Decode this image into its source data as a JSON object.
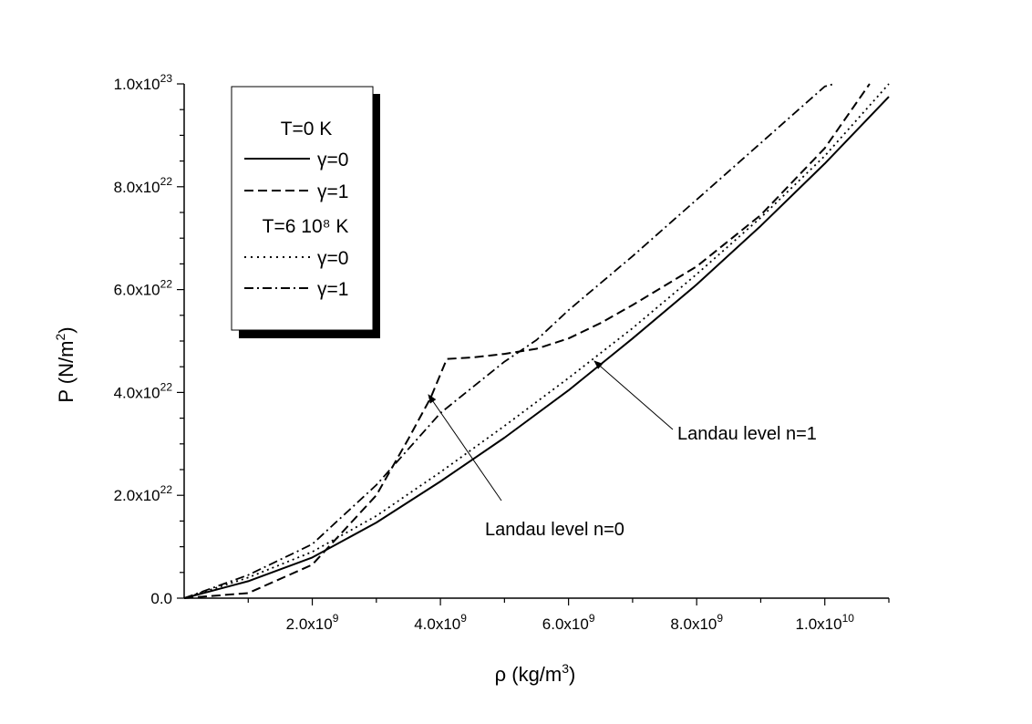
{
  "chart_data": {
    "type": "line",
    "xlabel": "ρ (kg/m³)",
    "ylabel": "P (N/m²)",
    "xlim": [
      0,
      11000000000
    ],
    "ylim": [
      0,
      1e+23
    ],
    "x_ticks": [
      {
        "value": 2000000000,
        "mant": "2.0x10",
        "exp": "9"
      },
      {
        "value": 4000000000,
        "mant": "4.0x10",
        "exp": "9"
      },
      {
        "value": 6000000000,
        "mant": "6.0x10",
        "exp": "9"
      },
      {
        "value": 8000000000,
        "mant": "8.0x10",
        "exp": "9"
      },
      {
        "value": 10000000000,
        "mant": "1.0x10",
        "exp": "10"
      }
    ],
    "y_ticks": [
      {
        "value": 0,
        "mant": "0.0",
        "exp": ""
      },
      {
        "value": 2e+22,
        "mant": "2.0x10",
        "exp": "22"
      },
      {
        "value": 4e+22,
        "mant": "4.0x10",
        "exp": "22"
      },
      {
        "value": 6e+22,
        "mant": "6.0x10",
        "exp": "22"
      },
      {
        "value": 8e+22,
        "mant": "8.0x10",
        "exp": "22"
      },
      {
        "value": 1e+23,
        "mant": "1.0x10",
        "exp": "23"
      }
    ],
    "legend": {
      "position": "top-left",
      "group_headers": [
        "T=0 K",
        "T=6 10⁸ K"
      ],
      "entries": [
        "γ=0",
        "γ=1",
        "γ=0",
        "γ=1"
      ]
    },
    "series": [
      {
        "group": "T=0 K",
        "gamma": "γ=0",
        "style": "solid",
        "x": [
          0,
          1000000000,
          2000000000,
          3000000000,
          4000000000,
          5000000000,
          6000000000,
          7000000000,
          8000000000,
          9000000000,
          10000000000,
          11000000000
        ],
        "y": [
          0,
          3.3e+21,
          7.9e+21,
          1.47e+22,
          2.27e+22,
          3.12e+22,
          4.04e+22,
          5.05e+22,
          6.1e+22,
          7.24e+22,
          8.45e+22,
          9.75e+22
        ]
      },
      {
        "group": "T=0 K",
        "gamma": "γ=1",
        "style": "dashed",
        "x": [
          0,
          1000000000,
          2000000000,
          3000000000,
          3500000000,
          3850000000,
          4100000000,
          4500000000,
          5000000000,
          5500000000,
          6000000000,
          6500000000,
          7000000000,
          8000000000,
          9000000000,
          10000000000,
          10700000000
        ],
        "y": [
          0,
          1e+21,
          6.5e+21,
          2e+22,
          3.1e+22,
          3.9e+22,
          4.65e+22,
          4.68e+22,
          4.75e+22,
          4.85e+22,
          5.05e+22,
          5.35e+22,
          5.7e+22,
          6.45e+22,
          7.45e+22,
          8.75e+22,
          1e+23
        ]
      },
      {
        "group": "T=6 10⁸ K",
        "gamma": "γ=0",
        "style": "dotted",
        "x": [
          0,
          1000000000,
          2000000000,
          3000000000,
          4000000000,
          5000000000,
          6000000000,
          7000000000,
          8000000000,
          9000000000,
          10000000000,
          11000000000
        ],
        "y": [
          0,
          4e+21,
          9e+21,
          1.6e+22,
          2.45e+22,
          3.35e+22,
          4.28e+22,
          5.25e+22,
          6.3e+22,
          7.4e+22,
          8.6e+22,
          1e+23
        ]
      },
      {
        "group": "T=6 10⁸ K",
        "gamma": "γ=1",
        "style": "dash-dot",
        "x": [
          0,
          1000000000,
          2000000000,
          3000000000,
          4000000000,
          4500000000,
          5000000000,
          5500000000,
          6000000000,
          7000000000,
          8000000000,
          9000000000,
          10000000000,
          10150000000
        ],
        "y": [
          0,
          4.5e+21,
          1.05e+22,
          2.2e+22,
          3.6e+22,
          4.1e+22,
          4.6e+22,
          5.02e+22,
          5.6e+22,
          6.65e+22,
          7.75e+22,
          8.85e+22,
          9.95e+22,
          1e+23
        ]
      }
    ],
    "annotations": [
      {
        "text": "Landau level n=1"
      },
      {
        "text": "Landau level n=0"
      }
    ]
  }
}
